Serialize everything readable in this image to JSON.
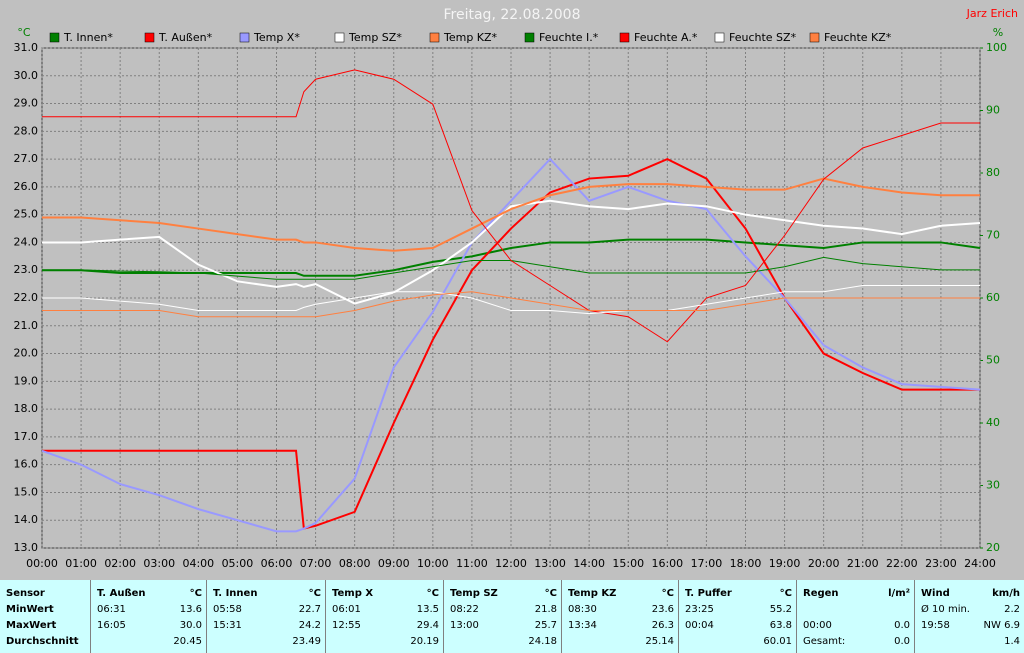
{
  "chart_data": {
    "type": "line",
    "title": "Freitag, 22.08.2008",
    "author": "Jarz Erich",
    "y_unit": "°C",
    "y2_unit": "%",
    "x": [
      0,
      1,
      2,
      3,
      4,
      5,
      6,
      6.5,
      6.7,
      7,
      8,
      9,
      10,
      11,
      12,
      13,
      14,
      15,
      16,
      17,
      18,
      19,
      20,
      21,
      22,
      23,
      24
    ],
    "xlim": [
      0,
      24
    ],
    "xticks": [
      {
        "value": 0,
        "label": "00:00"
      },
      {
        "value": 1,
        "label": "01:00"
      },
      {
        "value": 2,
        "label": "02:00"
      },
      {
        "value": 3,
        "label": "03:00"
      },
      {
        "value": 4,
        "label": "04:00"
      },
      {
        "value": 5,
        "label": "05:00"
      },
      {
        "value": 6,
        "label": "06:00"
      },
      {
        "value": 7,
        "label": "07:00"
      },
      {
        "value": 8,
        "label": "08:00"
      },
      {
        "value": 9,
        "label": "09:00"
      },
      {
        "value": 10,
        "label": "10:00"
      },
      {
        "value": 11,
        "label": "11:00"
      },
      {
        "value": 12,
        "label": "12:00"
      },
      {
        "value": 13,
        "label": "13:00"
      },
      {
        "value": 14,
        "label": "14:00"
      },
      {
        "value": 15,
        "label": "15:00"
      },
      {
        "value": 16,
        "label": "16:00"
      },
      {
        "value": 17,
        "label": "17:00"
      },
      {
        "value": 18,
        "label": "18:00"
      },
      {
        "value": 19,
        "label": "19:00"
      },
      {
        "value": 20,
        "label": "20:00"
      },
      {
        "value": 21,
        "label": "21:00"
      },
      {
        "value": 22,
        "label": "22:00"
      },
      {
        "value": 23,
        "label": "23:00"
      },
      {
        "value": 24,
        "label": "24:00"
      }
    ],
    "ylim": [
      13,
      31
    ],
    "yticks": [
      {
        "value": 13,
        "label": "13.0"
      },
      {
        "value": 14,
        "label": "14.0"
      },
      {
        "value": 15,
        "label": "15.0"
      },
      {
        "value": 16,
        "label": "16.0"
      },
      {
        "value": 17,
        "label": "17.0"
      },
      {
        "value": 18,
        "label": "18.0"
      },
      {
        "value": 19,
        "label": "19.0"
      },
      {
        "value": 20,
        "label": "20.0"
      },
      {
        "value": 21,
        "label": "21.0"
      },
      {
        "value": 22,
        "label": "22.0"
      },
      {
        "value": 23,
        "label": "23.0"
      },
      {
        "value": 24,
        "label": "24.0"
      },
      {
        "value": 25,
        "label": "25.0"
      },
      {
        "value": 26,
        "label": "26.0"
      },
      {
        "value": 27,
        "label": "27.0"
      },
      {
        "value": 28,
        "label": "28.0"
      },
      {
        "value": 29,
        "label": "29.0"
      },
      {
        "value": 30,
        "label": "30.0"
      },
      {
        "value": 31,
        "label": "31.0"
      }
    ],
    "y2lim": [
      20,
      100
    ],
    "y2ticks": [
      20,
      30,
      40,
      50,
      60,
      70,
      80,
      90,
      100
    ],
    "grid": true,
    "series": [
      {
        "name": "T. Innen*",
        "color": "#008000",
        "line_width": 2,
        "values": [
          23.0,
          23.0,
          22.9,
          22.9,
          22.9,
          22.9,
          22.9,
          22.9,
          22.8,
          22.8,
          22.8,
          23.0,
          23.3,
          23.5,
          23.8,
          24.0,
          24.0,
          24.1,
          24.1,
          24.1,
          24.0,
          23.9,
          23.8,
          24.0,
          24.0,
          24.0,
          23.8
        ]
      },
      {
        "name": "T. Außen*",
        "color": "#ff0000",
        "line_width": 2,
        "values": [
          16.5,
          16.5,
          16.5,
          16.5,
          16.5,
          16.5,
          16.5,
          16.5,
          13.7,
          13.8,
          14.3,
          17.5,
          20.5,
          23.0,
          24.5,
          25.8,
          26.3,
          26.4,
          27.0,
          26.3,
          24.5,
          22.0,
          20.0,
          19.3,
          18.7,
          18.7,
          18.7
        ]
      },
      {
        "name": "Temp X*",
        "color": "#9999ff",
        "line_width": 2,
        "values": [
          16.5,
          16.0,
          15.3,
          14.9,
          14.4,
          14.0,
          13.6,
          13.6,
          13.7,
          13.9,
          15.5,
          19.5,
          21.5,
          24.0,
          25.5,
          27.0,
          25.5,
          26.0,
          25.5,
          25.2,
          23.5,
          22.0,
          20.3,
          19.5,
          18.9,
          18.8,
          18.7
        ]
      },
      {
        "name": "Temp SZ*",
        "color": "#ffffff",
        "line_width": 2,
        "values": [
          24.0,
          24.0,
          24.1,
          24.2,
          23.2,
          22.6,
          22.4,
          22.5,
          22.4,
          22.5,
          21.8,
          22.2,
          23.0,
          24.0,
          25.3,
          25.5,
          25.3,
          25.2,
          25.4,
          25.3,
          25.0,
          24.8,
          24.6,
          24.5,
          24.3,
          24.6,
          24.7
        ]
      },
      {
        "name": "Temp KZ*",
        "color": "#ff8040",
        "line_width": 2,
        "values": [
          24.9,
          24.9,
          24.8,
          24.7,
          24.5,
          24.3,
          24.1,
          24.1,
          24.0,
          24.0,
          23.8,
          23.7,
          23.8,
          24.5,
          25.2,
          25.7,
          26.0,
          26.1,
          26.1,
          26.0,
          25.9,
          25.9,
          26.3,
          26.0,
          25.8,
          25.7,
          25.7
        ]
      },
      {
        "name": "Feuchte I.*",
        "color": "#008000",
        "line_width": 1,
        "axis": "y2",
        "values": [
          64.5,
          64.5,
          64.3,
          64.2,
          64,
          63.5,
          63,
          63,
          63,
          63,
          63,
          64,
          65,
          66,
          66,
          65,
          64,
          64,
          64,
          64,
          64,
          65,
          66.5,
          65.5,
          65,
          64.5,
          64.5
        ]
      },
      {
        "name": "Feuchte A.*",
        "color": "#ff0000",
        "line_width": 1,
        "axis": "y2",
        "values": [
          89,
          89,
          89,
          89,
          89,
          89,
          89,
          89,
          93,
          95,
          96.5,
          95,
          91,
          74,
          66,
          62,
          58,
          57,
          53,
          60,
          62,
          70,
          79,
          84,
          86,
          88,
          88
        ]
      },
      {
        "name": "Feuchte SZ*",
        "color": "#ffffff",
        "line_width": 1,
        "axis": "y2",
        "values": [
          60,
          60,
          59.5,
          59,
          58,
          58,
          58,
          58,
          58.5,
          59,
          60,
          61,
          61,
          60,
          58,
          58,
          57.5,
          58,
          58,
          59,
          60,
          61,
          61,
          62,
          62,
          62,
          62
        ]
      },
      {
        "name": "Feuchte KZ*",
        "color": "#ff8040",
        "line_width": 1,
        "axis": "y2",
        "values": [
          58,
          58,
          58,
          58,
          57,
          57,
          57,
          57,
          57,
          57,
          58,
          59.5,
          60.5,
          61,
          60,
          59,
          58,
          58,
          58,
          58,
          59,
          60,
          60,
          60,
          60,
          60,
          60
        ]
      }
    ]
  },
  "table": {
    "headers": [
      {
        "name": "Sensor"
      },
      {
        "name": "T. Außen",
        "unit": "°C"
      },
      {
        "name": "T. Innen",
        "unit": "°C"
      },
      {
        "name": "Temp X",
        "unit": "°C"
      },
      {
        "name": "Temp SZ",
        "unit": "°C"
      },
      {
        "name": "Temp KZ",
        "unit": "°C"
      },
      {
        "name": "T. Puffer",
        "unit": "°C"
      },
      {
        "name": "Regen",
        "unit": "l/m²"
      },
      {
        "name": "Wind",
        "unit": "km/h"
      }
    ],
    "rows": [
      {
        "label": "MinWert",
        "cells": [
          [
            "06:31",
            "13.6"
          ],
          [
            "05:58",
            "22.7"
          ],
          [
            "06:01",
            "13.5"
          ],
          [
            "08:22",
            "21.8"
          ],
          [
            "08:30",
            "23.6"
          ],
          [
            "23:25",
            "55.2"
          ],
          [],
          [
            "Ø 10 min.",
            "2.2"
          ]
        ]
      },
      {
        "label": "MaxWert",
        "cells": [
          [
            "16:05",
            "30.0"
          ],
          [
            "15:31",
            "24.2"
          ],
          [
            "12:55",
            "29.4"
          ],
          [
            "13:00",
            "25.7"
          ],
          [
            "13:34",
            "26.3"
          ],
          [
            "00:04",
            "63.8"
          ],
          [
            "00:00",
            "0.0"
          ],
          [
            "19:58",
            "NW 6.9"
          ]
        ]
      },
      {
        "label": "Durchschnitt",
        "cells": [
          [
            "20.45"
          ],
          [
            "23.49"
          ],
          [
            "20.19"
          ],
          [
            "24.18"
          ],
          [
            "25.14"
          ],
          [
            "60.01"
          ],
          [
            "Gesamt:",
            "0.0"
          ],
          [
            "1.4"
          ]
        ]
      }
    ]
  }
}
